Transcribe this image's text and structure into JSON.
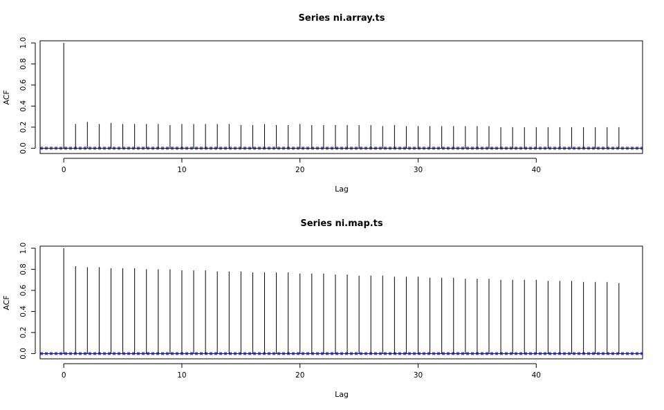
{
  "chart_data": [
    {
      "type": "bar",
      "subtype": "acf-stem",
      "title": "Series  ni.array.ts",
      "xlabel": "Lag",
      "ylabel": "ACF",
      "xlim": [
        -2,
        49
      ],
      "ylim": [
        -0.05,
        1.02
      ],
      "x_ticks": [
        0,
        10,
        20,
        30,
        40
      ],
      "y_ticks": [
        "0.0",
        "0.2",
        "0.4",
        "0.6",
        "0.8",
        "1.0"
      ],
      "x": [
        0,
        1,
        2,
        3,
        4,
        5,
        6,
        7,
        8,
        9,
        10,
        11,
        12,
        13,
        14,
        15,
        16,
        17,
        18,
        19,
        20,
        21,
        22,
        23,
        24,
        25,
        26,
        27,
        28,
        29,
        30,
        31,
        32,
        33,
        34,
        35,
        36,
        37,
        38,
        39,
        40,
        41,
        42,
        43,
        44,
        45,
        46,
        47
      ],
      "values": [
        1.0,
        0.23,
        0.25,
        0.23,
        0.24,
        0.23,
        0.23,
        0.23,
        0.23,
        0.22,
        0.23,
        0.23,
        0.23,
        0.23,
        0.23,
        0.22,
        0.22,
        0.23,
        0.22,
        0.22,
        0.23,
        0.22,
        0.22,
        0.22,
        0.22,
        0.22,
        0.22,
        0.21,
        0.22,
        0.21,
        0.21,
        0.21,
        0.21,
        0.21,
        0.21,
        0.21,
        0.21,
        0.2,
        0.2,
        0.2,
        0.2,
        0.2,
        0.2,
        0.2,
        0.2,
        0.2,
        0.2,
        0.2
      ],
      "confidence_band": [
        -0.009,
        0.009
      ],
      "grid": false,
      "colors": {
        "stem": "#000000",
        "zero_line": "#000000",
        "ci_line": "#0000ff"
      }
    },
    {
      "type": "bar",
      "subtype": "acf-stem",
      "title": "Series  ni.map.ts",
      "xlabel": "Lag",
      "ylabel": "ACF",
      "xlim": [
        -2,
        49
      ],
      "ylim": [
        -0.05,
        1.02
      ],
      "x_ticks": [
        0,
        10,
        20,
        30,
        40
      ],
      "y_ticks": [
        "0.0",
        "0.2",
        "0.4",
        "0.6",
        "0.8",
        "1.0"
      ],
      "x": [
        0,
        1,
        2,
        3,
        4,
        5,
        6,
        7,
        8,
        9,
        10,
        11,
        12,
        13,
        14,
        15,
        16,
        17,
        18,
        19,
        20,
        21,
        22,
        23,
        24,
        25,
        26,
        27,
        28,
        29,
        30,
        31,
        32,
        33,
        34,
        35,
        36,
        37,
        38,
        39,
        40,
        41,
        42,
        43,
        44,
        45,
        46,
        47
      ],
      "values": [
        1.0,
        0.83,
        0.82,
        0.82,
        0.81,
        0.81,
        0.81,
        0.8,
        0.8,
        0.8,
        0.79,
        0.79,
        0.79,
        0.78,
        0.78,
        0.78,
        0.77,
        0.77,
        0.77,
        0.77,
        0.76,
        0.76,
        0.76,
        0.75,
        0.75,
        0.74,
        0.74,
        0.74,
        0.73,
        0.73,
        0.73,
        0.72,
        0.72,
        0.72,
        0.71,
        0.71,
        0.71,
        0.7,
        0.7,
        0.7,
        0.7,
        0.69,
        0.69,
        0.69,
        0.68,
        0.68,
        0.68,
        0.67
      ],
      "confidence_band": [
        -0.009,
        0.009
      ],
      "grid": false,
      "colors": {
        "stem": "#000000",
        "zero_line": "#000000",
        "ci_line": "#0000ff"
      }
    }
  ]
}
